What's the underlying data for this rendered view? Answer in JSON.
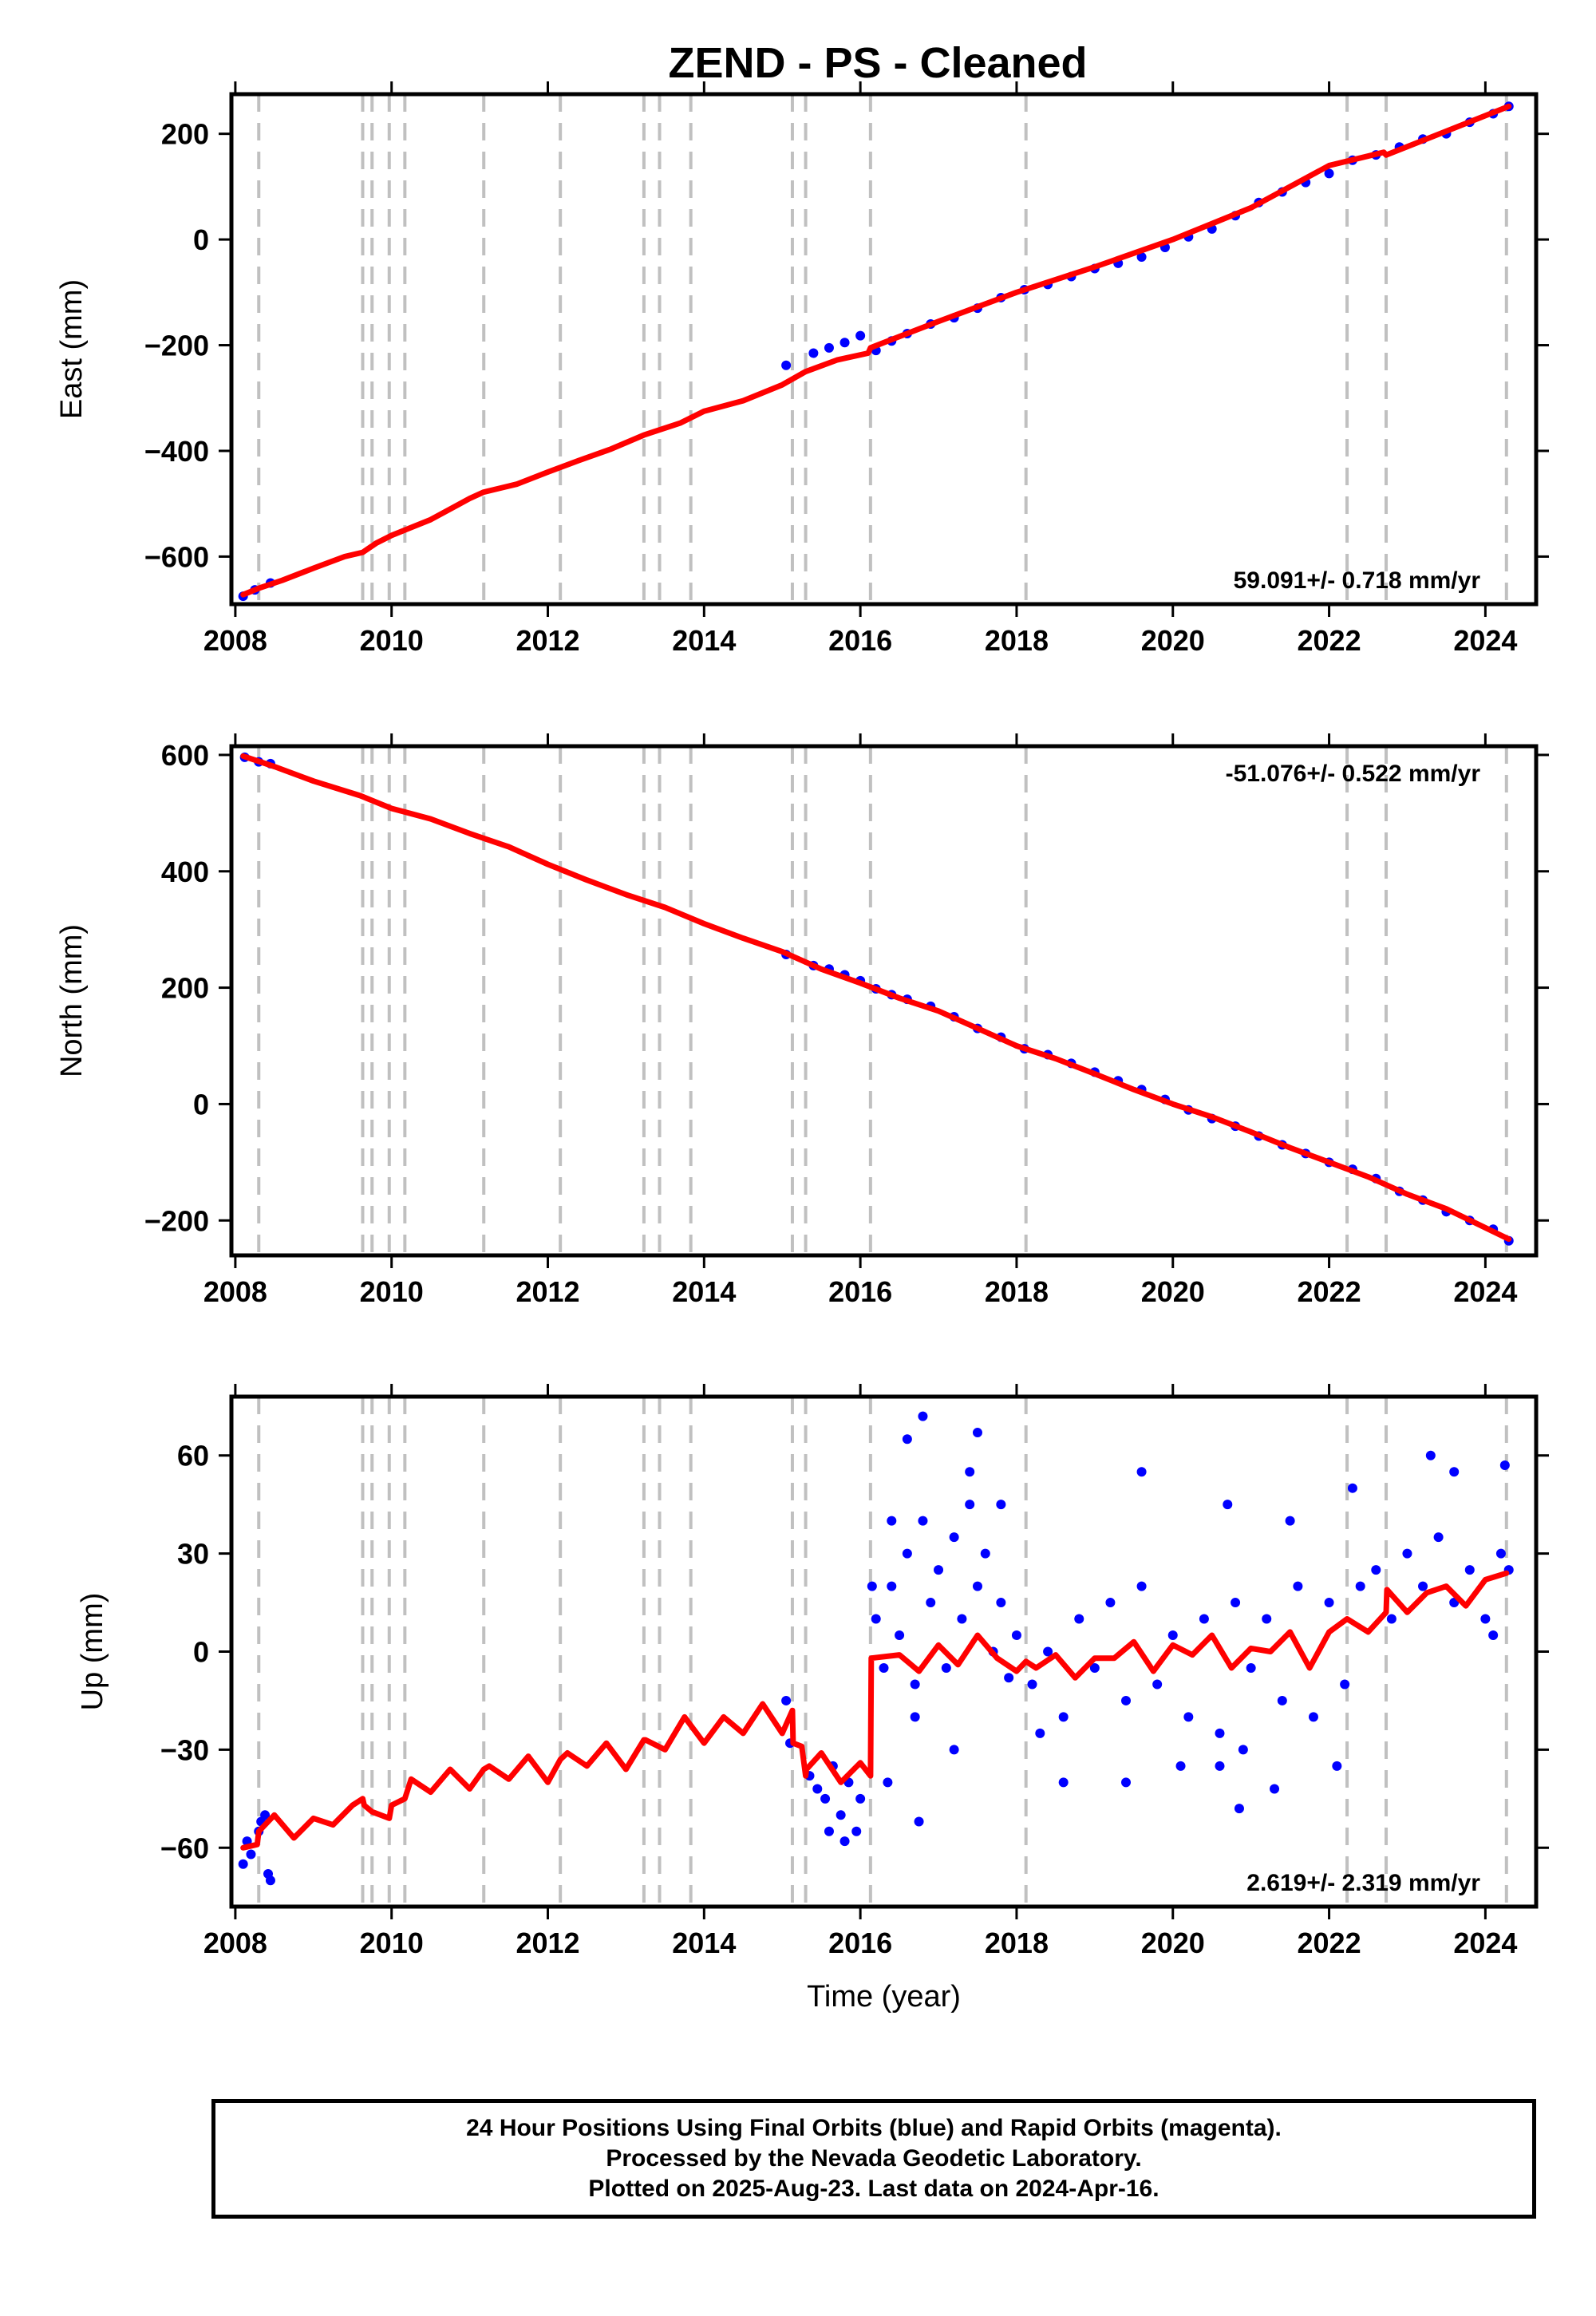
{
  "figure": {
    "title": "ZEND  - PS - Cleaned",
    "colors": {
      "obs": "#0000ff",
      "model": "#ff0000",
      "event": "#c0c0c0",
      "axis": "#000000"
    },
    "events": [
      2008.3,
      2009.63,
      2009.75,
      2009.97,
      2010.17,
      2011.18,
      2012.16,
      2013.23,
      2013.43,
      2013.83,
      2015.13,
      2015.3,
      2016.13,
      2018.12,
      2022.23,
      2022.73,
      2024.27
    ]
  },
  "chart_data": [
    {
      "type": "scatter",
      "id": "east",
      "ylabel": "East (mm)",
      "xlabel": "",
      "xlim": [
        2007.95,
        2024.65
      ],
      "ylim": [
        -690,
        275
      ],
      "xticks": [
        2008,
        2010,
        2012,
        2014,
        2016,
        2018,
        2020,
        2022,
        2024
      ],
      "xtick_labels": [
        "2008",
        "2010",
        "2012",
        "2014",
        "2016",
        "2018",
        "2020",
        "2022",
        "2024"
      ],
      "yticks": [
        -600,
        -400,
        -200,
        0,
        200
      ],
      "ytick_labels": [
        "−600",
        "−400",
        "−200",
        "0",
        "200"
      ],
      "rate_label": "59.091+/- 0.718 mm/yr",
      "rate_position": "bottom-right",
      "grid": false,
      "model": {
        "name": "",
        "x": [
          2008.1,
          2008.3,
          2008.6,
          2009.0,
          2009.4,
          2009.63,
          2009.8,
          2010.0,
          2010.5,
          2011.0,
          2011.18,
          2011.6,
          2012.0,
          2012.4,
          2012.8,
          2013.23,
          2013.7,
          2014.0,
          2014.5,
          2015.0,
          2015.3,
          2015.7,
          2016.1,
          2016.13,
          2017.0,
          2018.0,
          2019.0,
          2020.0,
          2021.0,
          2022.0,
          2022.7,
          2022.73,
          2023.5,
          2024.3
        ],
        "y": [
          -672,
          -660,
          -645,
          -622,
          -600,
          -592,
          -575,
          -560,
          -530,
          -490,
          -478,
          -463,
          -440,
          -418,
          -397,
          -370,
          -347,
          -325,
          -305,
          -275,
          -250,
          -228,
          -215,
          -205,
          -155,
          -100,
          -52,
          0,
          60,
          140,
          165,
          160,
          205,
          252
        ]
      },
      "series": [
        {
          "name": "",
          "x": [
            2008.1,
            2008.25,
            2008.45,
            2015.05,
            2015.4,
            2015.6,
            2015.8,
            2016.0,
            2016.2,
            2016.4,
            2016.6,
            2016.9,
            2017.2,
            2017.5,
            2017.8,
            2018.1,
            2018.4,
            2018.7,
            2019.0,
            2019.3,
            2019.6,
            2019.9,
            2020.2,
            2020.5,
            2020.8,
            2021.1,
            2021.4,
            2021.7,
            2022.0,
            2022.3,
            2022.6,
            2022.9,
            2023.2,
            2023.5,
            2023.8,
            2024.1,
            2024.3
          ],
          "y": [
            -675,
            -663,
            -650,
            -238,
            -215,
            -205,
            -195,
            -182,
            -210,
            -192,
            -178,
            -160,
            -148,
            -130,
            -110,
            -95,
            -85,
            -70,
            -55,
            -45,
            -33,
            -15,
            5,
            20,
            45,
            70,
            90,
            108,
            125,
            150,
            160,
            175,
            190,
            200,
            222,
            238,
            252
          ]
        }
      ]
    },
    {
      "type": "scatter",
      "id": "north",
      "ylabel": "North (mm)",
      "xlabel": "",
      "xlim": [
        2007.95,
        2024.65
      ],
      "ylim": [
        -260,
        615
      ],
      "xticks": [
        2008,
        2010,
        2012,
        2014,
        2016,
        2018,
        2020,
        2022,
        2024
      ],
      "xtick_labels": [
        "2008",
        "2010",
        "2012",
        "2014",
        "2016",
        "2018",
        "2020",
        "2022",
        "2024"
      ],
      "yticks": [
        -200,
        0,
        200,
        400,
        600
      ],
      "ytick_labels": [
        "−200",
        "0",
        "200",
        "400",
        "600"
      ],
      "rate_label": "-51.076+/- 0.522 mm/yr",
      "rate_position": "top-right",
      "grid": false,
      "model": {
        "name": "",
        "x": [
          2008.1,
          2008.5,
          2009.0,
          2009.6,
          2010.0,
          2010.5,
          2011.0,
          2011.5,
          2012.0,
          2012.5,
          2013.0,
          2013.5,
          2014.0,
          2014.5,
          2015.0,
          2015.5,
          2016.0,
          2016.5,
          2017.0,
          2017.5,
          2018.0,
          2018.5,
          2019.0,
          2019.5,
          2020.0,
          2020.5,
          2021.0,
          2021.5,
          2022.0,
          2022.5,
          2023.0,
          2023.5,
          2024.3
        ],
        "y": [
          598,
          580,
          555,
          530,
          508,
          490,
          465,
          442,
          412,
          385,
          360,
          338,
          310,
          285,
          262,
          232,
          208,
          182,
          160,
          130,
          100,
          78,
          52,
          25,
          0,
          -22,
          -48,
          -75,
          -100,
          -125,
          -155,
          -180,
          -232
        ]
      },
      "series": [
        {
          "name": "",
          "x": [
            2008.12,
            2008.3,
            2008.45,
            2015.05,
            2015.4,
            2015.6,
            2015.8,
            2016.0,
            2016.2,
            2016.4,
            2016.6,
            2016.9,
            2017.2,
            2017.5,
            2017.8,
            2018.1,
            2018.4,
            2018.7,
            2019.0,
            2019.3,
            2019.6,
            2019.9,
            2020.2,
            2020.5,
            2020.8,
            2021.1,
            2021.4,
            2021.7,
            2022.0,
            2022.3,
            2022.6,
            2022.9,
            2023.2,
            2023.5,
            2023.8,
            2024.1,
            2024.3
          ],
          "y": [
            596,
            588,
            585,
            257,
            238,
            232,
            222,
            212,
            198,
            188,
            180,
            168,
            150,
            130,
            115,
            95,
            85,
            70,
            55,
            40,
            25,
            8,
            -10,
            -25,
            -38,
            -55,
            -70,
            -85,
            -100,
            -112,
            -128,
            -150,
            -165,
            -185,
            -200,
            -215,
            -235
          ]
        }
      ]
    },
    {
      "type": "scatter",
      "id": "up",
      "ylabel": "Up (mm)",
      "xlabel": "Time (year)",
      "xlim": [
        2007.95,
        2024.65
      ],
      "ylim": [
        -78,
        78
      ],
      "xticks": [
        2008,
        2010,
        2012,
        2014,
        2016,
        2018,
        2020,
        2022,
        2024
      ],
      "xtick_labels": [
        "2008",
        "2010",
        "2012",
        "2014",
        "2016",
        "2018",
        "2020",
        "2022",
        "2024"
      ],
      "yticks": [
        -60,
        -30,
        0,
        30,
        60
      ],
      "ytick_labels": [
        "−60",
        "−30",
        "0",
        "30",
        "60"
      ],
      "rate_label": "2.619+/- 2.319 mm/yr",
      "rate_position": "bottom-right",
      "grid": false,
      "model": {
        "name": "",
        "x": [
          2008.1,
          2008.28,
          2008.3,
          2008.5,
          2008.75,
          2009.0,
          2009.25,
          2009.5,
          2009.63,
          2009.65,
          2009.75,
          2009.97,
          2010.0,
          2010.17,
          2010.25,
          2010.5,
          2010.75,
          2011.0,
          2011.18,
          2011.25,
          2011.5,
          2011.75,
          2012.0,
          2012.16,
          2012.25,
          2012.5,
          2012.75,
          2013.0,
          2013.23,
          2013.25,
          2013.5,
          2013.75,
          2014.0,
          2014.25,
          2014.5,
          2014.75,
          2015.0,
          2015.13,
          2015.14,
          2015.25,
          2015.3,
          2015.31,
          2015.5,
          2015.75,
          2016.0,
          2016.13,
          2016.14,
          2016.5,
          2016.75,
          2017.0,
          2017.25,
          2017.5,
          2017.75,
          2018.0,
          2018.12,
          2018.25,
          2018.5,
          2018.75,
          2019.0,
          2019.25,
          2019.5,
          2019.75,
          2020.0,
          2020.25,
          2020.5,
          2020.75,
          2021.0,
          2021.25,
          2021.5,
          2021.75,
          2022.0,
          2022.23,
          2022.5,
          2022.73,
          2022.74,
          2023.0,
          2023.25,
          2023.5,
          2023.75,
          2024.0,
          2024.27
        ],
        "y": [
          -60,
          -59,
          -55,
          -50,
          -57,
          -51,
          -53,
          -47,
          -45,
          -47,
          -49,
          -51,
          -47,
          -45,
          -39,
          -43,
          -36,
          -42,
          -36,
          -35,
          -39,
          -32,
          -40,
          -33,
          -31,
          -35,
          -28,
          -36,
          -27,
          -27,
          -30,
          -20,
          -28,
          -20,
          -25,
          -16,
          -25,
          -18,
          -28,
          -29,
          -38,
          -36,
          -31,
          -40,
          -34,
          -38,
          -2,
          -1,
          -6,
          2,
          -4,
          5,
          -2,
          -6,
          -3,
          -5,
          -1,
          -8,
          -2,
          -2,
          3,
          -6,
          2,
          -1,
          5,
          -5,
          1,
          0,
          6,
          -5,
          6,
          10,
          6,
          12,
          19,
          12,
          18,
          20,
          14,
          22,
          24
        ]
      },
      "series": [
        {
          "name": "",
          "x": [
            2008.1,
            2008.15,
            2008.2,
            2008.3,
            2008.33,
            2008.38,
            2008.42,
            2008.45,
            2015.05,
            2015.1,
            2015.35,
            2015.45,
            2015.55,
            2015.65,
            2015.75,
            2015.85,
            2015.95,
            2016.0,
            2016.2,
            2016.3,
            2016.4,
            2016.5,
            2016.6,
            2016.7,
            2016.8,
            2016.9,
            2017.0,
            2017.1,
            2017.2,
            2017.3,
            2017.4,
            2017.5,
            2017.6,
            2017.7,
            2017.8,
            2017.9,
            2018.0,
            2018.2,
            2018.4,
            2018.6,
            2018.8,
            2019.0,
            2019.2,
            2019.4,
            2019.6,
            2019.8,
            2020.0,
            2020.2,
            2020.4,
            2020.6,
            2020.8,
            2020.9,
            2021.0,
            2021.2,
            2021.4,
            2021.6,
            2021.8,
            2022.0,
            2022.2,
            2022.4,
            2022.6,
            2022.8,
            2023.0,
            2023.2,
            2023.4,
            2023.6,
            2023.8,
            2024.0,
            2024.2,
            2024.3,
            2016.6,
            2016.8,
            2017.4,
            2017.5,
            2016.15,
            2016.4,
            2016.7,
            2017.2,
            2017.8,
            2018.3,
            2019.6,
            2020.1,
            2020.7,
            2020.85,
            2021.5,
            2022.3,
            2023.3,
            2023.6,
            2024.25,
            2015.6,
            2015.8,
            2016.35,
            2016.75,
            2018.6,
            2019.4,
            2020.6,
            2021.3,
            2022.1,
            2024.1
          ],
          "y": [
            -65,
            -58,
            -62,
            -55,
            -52,
            -50,
            -68,
            -70,
            -15,
            -28,
            -38,
            -42,
            -45,
            -35,
            -50,
            -40,
            -55,
            -45,
            10,
            -5,
            20,
            5,
            30,
            -10,
            40,
            15,
            25,
            -5,
            35,
            10,
            45,
            20,
            30,
            0,
            15,
            -8,
            5,
            -10,
            0,
            -20,
            10,
            -5,
            15,
            -15,
            20,
            -10,
            5,
            -20,
            10,
            -25,
            15,
            -30,
            -5,
            10,
            -15,
            20,
            -20,
            15,
            -10,
            20,
            25,
            10,
            30,
            20,
            35,
            15,
            25,
            10,
            30,
            25,
            65,
            72,
            55,
            67,
            20,
            40,
            -20,
            -30,
            45,
            -25,
            55,
            -35,
            45,
            -48,
            40,
            50,
            60,
            55,
            57,
            -55,
            -58,
            -40,
            -52,
            -40,
            -40,
            -35,
            -42,
            -35,
            5
          ]
        }
      ]
    }
  ],
  "footer": {
    "line1": "24 Hour Positions Using Final Orbits (blue) and Rapid Orbits (magenta).",
    "line2": "Processed by the Nevada Geodetic Laboratory.",
    "line3": "Plotted on 2025-Aug-23. Last data on 2024-Apr-16."
  }
}
